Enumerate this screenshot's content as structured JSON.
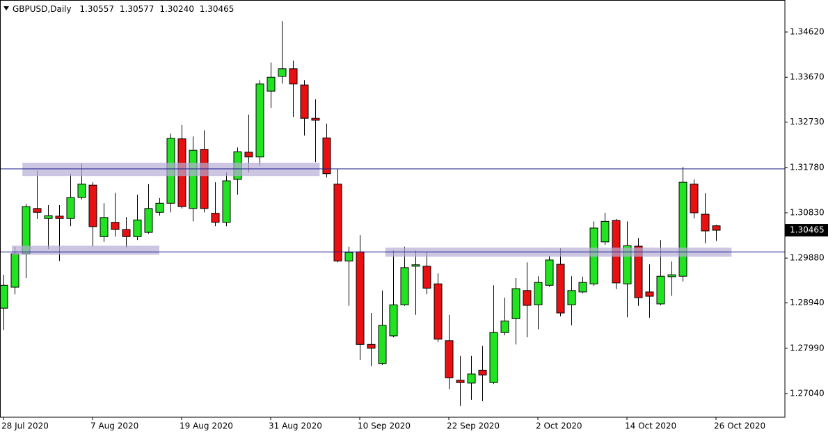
{
  "chart_data": {
    "type": "candlestick",
    "title": "GBPUSD,Daily",
    "ohlc_labels": [
      "1.30557",
      "1.30577",
      "1.30240",
      "1.30465"
    ],
    "categories": [
      "28 Jul 2020",
      null,
      null,
      null,
      null,
      null,
      null,
      null,
      "7 Aug 2020",
      null,
      null,
      null,
      null,
      null,
      null,
      null,
      "19 Aug 2020",
      null,
      null,
      null,
      null,
      null,
      null,
      null,
      "31 Aug 2020",
      null,
      null,
      null,
      null,
      null,
      null,
      null,
      "10 Sep 2020",
      null,
      null,
      null,
      null,
      null,
      null,
      null,
      "22 Sep 2020",
      null,
      null,
      null,
      null,
      null,
      null,
      null,
      "2 Oct 2020",
      null,
      null,
      null,
      null,
      null,
      null,
      null,
      "14 Oct 2020",
      null,
      null,
      null,
      null,
      null,
      null,
      null,
      "26 Oct 2020"
    ],
    "open": [
      1.2883,
      1.2927,
      1.2997,
      1.3092,
      1.3071,
      1.3076,
      1.3071,
      1.3115,
      1.3141,
      1.3033,
      1.3063,
      1.3048,
      1.3033,
      1.3042,
      1.3084,
      1.3103,
      1.3238,
      1.3092,
      1.3216,
      1.3082,
      1.3063,
      1.3153,
      1.321,
      1.32,
      1.3338,
      1.3369,
      1.3385,
      1.3351,
      1.3281,
      1.324,
      1.3143,
      1.2982,
      1.3001,
      1.2807,
      1.2767,
      1.2825,
      1.289,
      1.2971,
      1.2971,
      1.2934,
      1.2815,
      1.2732,
      1.2726,
      1.2753,
      1.2727,
      1.2832,
      1.2861,
      1.292,
      1.289,
      1.2931,
      1.2975,
      1.289,
      1.2917,
      1.2934,
      1.3022,
      1.3067,
      1.2934,
      1.3013,
      1.2917,
      1.2892,
      1.2949,
      1.295,
      1.3143,
      1.308,
      1.30557
    ],
    "high": [
      1.2953,
      1.3012,
      1.3102,
      1.3172,
      1.3099,
      1.3099,
      1.3165,
      1.3186,
      1.3147,
      1.3103,
      1.3125,
      1.3074,
      1.3121,
      1.3143,
      1.3114,
      1.3249,
      1.3267,
      1.3243,
      1.3256,
      1.3147,
      1.3168,
      1.322,
      1.3289,
      1.3361,
      1.3398,
      1.3485,
      1.3402,
      1.3361,
      1.3321,
      1.327,
      1.3175,
      1.3012,
      1.3036,
      1.2873,
      1.292,
      1.3004,
      1.3012,
      1.3004,
      1.3001,
      1.2956,
      1.2869,
      1.2783,
      1.2783,
      1.2804,
      1.2931,
      1.2905,
      1.2946,
      1.2979,
      1.295,
      1.2993,
      1.3009,
      1.295,
      1.2949,
      1.3065,
      1.3083,
      1.307,
      1.3065,
      1.303,
      1.2975,
      1.3026,
      1.2981,
      1.3179,
      1.3153,
      1.3124,
      1.30577
    ],
    "low": [
      1.2837,
      1.2912,
      1.2946,
      1.307,
      1.3007,
      1.2982,
      1.3055,
      1.3111,
      1.3012,
      1.3022,
      1.3033,
      1.301,
      1.3026,
      1.3039,
      1.3077,
      1.3084,
      1.3092,
      1.3065,
      1.3084,
      1.3055,
      1.3055,
      1.3121,
      1.3168,
      1.3182,
      1.3303,
      1.3354,
      1.3284,
      1.3245,
      1.3189,
      1.3157,
      1.2979,
      1.2888,
      1.2774,
      1.2762,
      1.2764,
      1.2822,
      1.2888,
      1.2869,
      1.2912,
      1.2812,
      1.2713,
      1.2678,
      1.2691,
      1.2688,
      1.2724,
      1.2826,
      1.2807,
      1.2822,
      1.2839,
      1.2928,
      1.2866,
      1.2847,
      1.2914,
      1.293,
      1.3016,
      1.2923,
      1.2864,
      1.2888,
      1.2863,
      1.2889,
      1.2909,
      1.2939,
      1.3071,
      1.3019,
      1.3024
    ],
    "close": [
      1.2931,
      1.2997,
      1.3096,
      1.3084,
      1.3077,
      1.3071,
      1.3115,
      1.3143,
      1.3054,
      1.3073,
      1.3048,
      1.3033,
      1.3068,
      1.3092,
      1.3103,
      1.3239,
      1.3096,
      1.3214,
      1.3092,
      1.3063,
      1.315,
      1.3211,
      1.32,
      1.3353,
      1.3367,
      1.3385,
      1.3353,
      1.3281,
      1.3277,
      1.3165,
      1.2982,
      1.3,
      1.2807,
      1.2799,
      1.2847,
      1.289,
      1.2968,
      1.2974,
      1.2925,
      1.2818,
      1.2737,
      1.2727,
      1.2745,
      1.2743,
      1.2832,
      1.2856,
      1.2924,
      1.2889,
      1.2937,
      1.2984,
      1.2873,
      1.292,
      1.2937,
      1.3051,
      1.3065,
      1.2936,
      1.3014,
      1.2905,
      1.2908,
      1.295,
      1.2953,
      1.3147,
      1.3083,
      1.3045,
      1.30465
    ],
    "up_color": "#22e322",
    "down_color": "#e81010",
    "ylim": [
      1.26544,
      1.35291
    ],
    "yticks": [
      {
        "value": 1.3462,
        "label": "1.34620"
      },
      {
        "value": 1.3367,
        "label": "1.33670"
      },
      {
        "value": 1.3273,
        "label": "1.32730"
      },
      {
        "value": 1.3178,
        "label": "1.31780"
      },
      {
        "value": 1.3083,
        "label": "1.30830"
      },
      {
        "value": 1.2988,
        "label": "1.29880"
      },
      {
        "value": 1.2894,
        "label": "1.28940"
      },
      {
        "value": 1.2799,
        "label": "1.27990"
      },
      {
        "value": 1.2704,
        "label": "1.27040"
      }
    ],
    "hlines": [
      1.3175,
      1.3001
    ],
    "hline_color": "#1a1a8c",
    "zones": [
      {
        "x": [
          1.7,
          28.4
        ],
        "y": [
          1.316,
          1.3188
        ]
      },
      {
        "x": [
          0.75,
          14.0
        ],
        "y": [
          1.2995,
          1.3014
        ]
      },
      {
        "x": [
          34.3,
          65.4
        ],
        "y": [
          1.2991,
          1.301
        ]
      }
    ],
    "zone_color": "#b7aed6",
    "last_price": {
      "value": 1.30465,
      "label": "1.30465"
    }
  }
}
